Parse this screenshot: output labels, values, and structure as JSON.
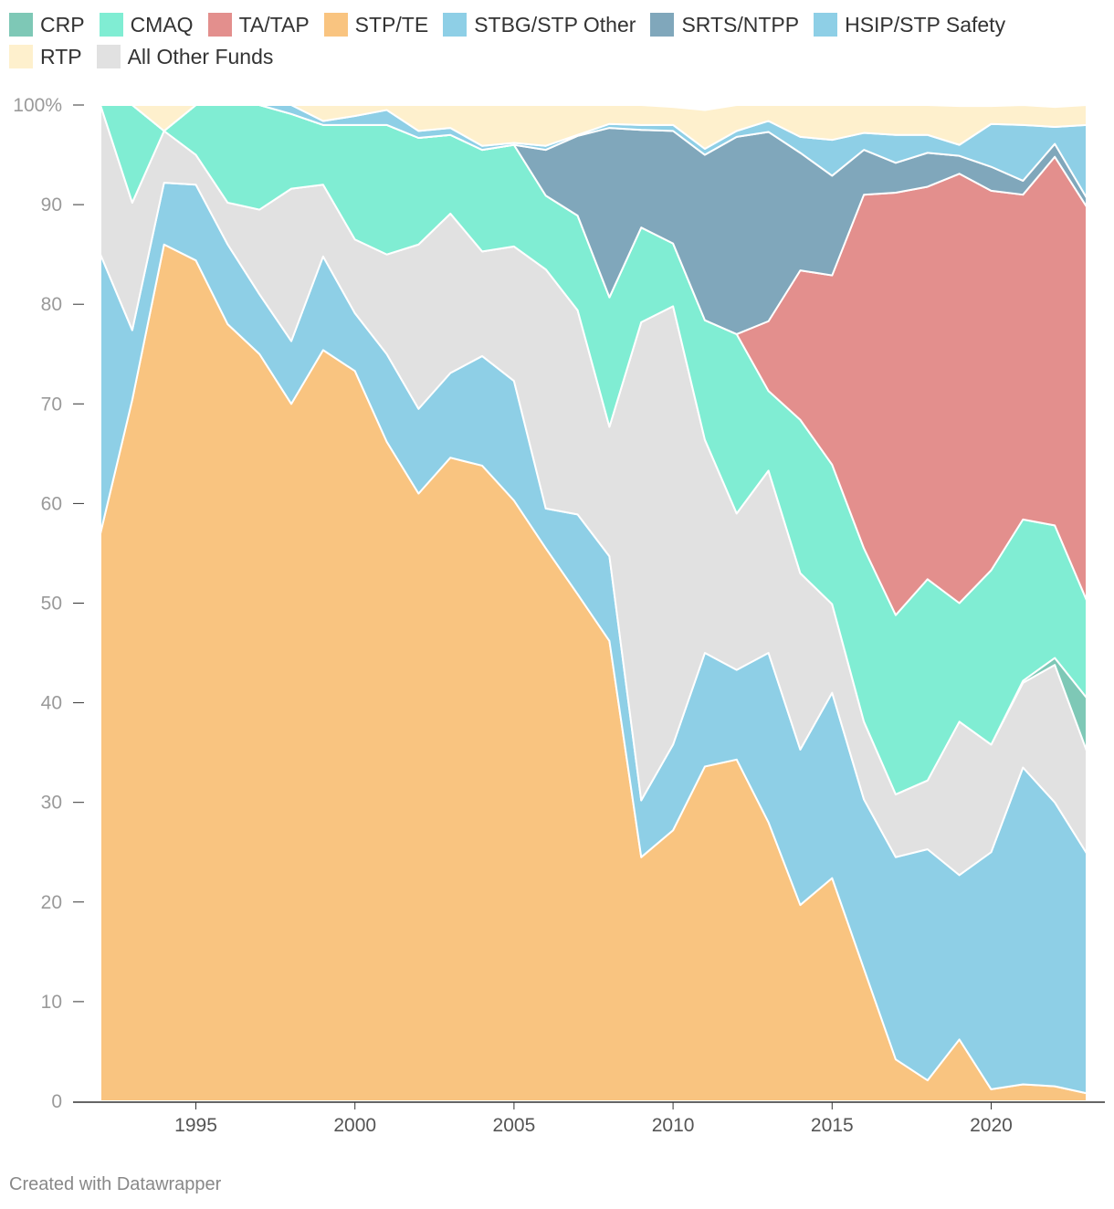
{
  "chart_data": {
    "type": "area",
    "stacked": true,
    "percent": true,
    "x": [
      1992,
      1993,
      1994,
      1995,
      1996,
      1997,
      1998,
      1999,
      2000,
      2001,
      2002,
      2003,
      2004,
      2005,
      2006,
      2007,
      2008,
      2009,
      2010,
      2011,
      2012,
      2013,
      2014,
      2015,
      2016,
      2017,
      2018,
      2019,
      2020,
      2021,
      2022,
      2023
    ],
    "ylim": [
      0,
      100
    ],
    "y_ticks": [
      0,
      10,
      20,
      30,
      40,
      50,
      60,
      70,
      80,
      90,
      100
    ],
    "y_tick_labels": [
      "0",
      "10",
      "20",
      "30",
      "40",
      "50",
      "60",
      "70",
      "80",
      "90",
      "100%"
    ],
    "x_ticks": [
      1995,
      2000,
      2005,
      2010,
      2015,
      2020
    ],
    "x_tick_labels": [
      "1995",
      "2000",
      "2005",
      "2010",
      "2015",
      "2020"
    ],
    "grid": "horizontal",
    "legend_position": "top",
    "series": [
      {
        "name": "STP/TE",
        "color": "#f9c480",
        "values": [
          57,
          70.4,
          86,
          84.4,
          78,
          75,
          70,
          75.4,
          73.3,
          66.2,
          61,
          64.6,
          63.8,
          60.3,
          55.5,
          50.9,
          46.2,
          24.5,
          27.2,
          33.6,
          34.3,
          28,
          19.7,
          22.4,
          13.3,
          4.2,
          2.1,
          6.2,
          1.2,
          1.7,
          1.5,
          0.8
        ]
      },
      {
        "name": "STBG/STP Other",
        "color": "#8ecfe6",
        "values": [
          28,
          7,
          6.2,
          7.6,
          8,
          6,
          6.3,
          9.4,
          5.8,
          8.8,
          8.5,
          8.5,
          11,
          12,
          4,
          8,
          8.5,
          5.7,
          8.6,
          11.4,
          9,
          17,
          15.6,
          18.6,
          17,
          20.3,
          23.2,
          16.5,
          23.8,
          31.8,
          28.5,
          24.1
        ]
      },
      {
        "name": "All Other Funds",
        "color": "#e1e1e1",
        "values": [
          15,
          12.8,
          5.2,
          3,
          4.2,
          8.5,
          15.3,
          7.2,
          7.4,
          10,
          16.5,
          16,
          10.5,
          13.5,
          24,
          20.5,
          13,
          48,
          44,
          21.4,
          15.7,
          18.3,
          17.7,
          8.9,
          7.8,
          6.3,
          6.9,
          15.4,
          10.8,
          8.5,
          13.8,
          10.3
        ]
      },
      {
        "name": "CRP",
        "color": "#7ec8b6",
        "values": [
          0,
          0,
          0,
          0,
          0,
          0,
          0,
          0,
          0,
          0,
          0,
          0,
          0,
          0,
          0,
          0,
          0,
          0,
          0,
          0,
          0,
          0,
          0,
          0,
          0,
          0,
          0,
          0,
          0,
          0.2,
          0.7,
          5.3
        ]
      },
      {
        "name": "CMAQ",
        "color": "#80edd3",
        "values": [
          0,
          9.8,
          0,
          5,
          9.8,
          10.5,
          7.5,
          6,
          11.5,
          13,
          10.7,
          7.9,
          10.2,
          10.2,
          7.4,
          9.5,
          13,
          9.5,
          6.3,
          12,
          18,
          8,
          15.4,
          14,
          17.4,
          18,
          20.2,
          11.9,
          17.5,
          16.2,
          13.3,
          9.8
        ]
      },
      {
        "name": "TA/TAP",
        "color": "#e38f8d",
        "values": [
          0,
          0,
          0,
          0,
          0,
          0,
          0,
          0,
          0,
          0,
          0,
          0,
          0,
          0,
          0,
          0,
          0,
          0,
          0,
          0,
          0,
          7,
          15,
          19,
          35.5,
          42.4,
          39.4,
          43.1,
          38.1,
          32.6,
          37,
          39.5
        ]
      },
      {
        "name": "SRTS/NTPP",
        "color": "#80a7bb",
        "values": [
          0,
          0,
          0,
          0,
          0,
          0,
          0,
          0,
          0,
          0,
          0,
          0,
          0,
          0,
          4.6,
          8,
          17,
          9.8,
          11.3,
          16.6,
          19.8,
          19,
          11.8,
          10,
          4.5,
          3,
          3.4,
          1.8,
          2.4,
          1.4,
          1.3,
          0.9
        ]
      },
      {
        "name": "HSIP/STP Safety",
        "color": "#8ecfe6",
        "values": [
          0,
          0,
          0,
          0,
          0,
          0,
          0.9,
          0.4,
          0.9,
          1.5,
          0.7,
          0.7,
          0.4,
          0.2,
          0.4,
          0.1,
          0.4,
          0.5,
          0.6,
          0.6,
          0.6,
          1.1,
          1.6,
          3.6,
          1.7,
          2.8,
          1.8,
          1.1,
          4.3,
          5.6,
          1.7,
          7.3
        ]
      },
      {
        "name": "RTP",
        "color": "#fef0cd",
        "values": [
          0,
          0,
          2.6,
          0,
          0,
          0,
          0,
          1.6,
          1.1,
          0.5,
          2.6,
          2.3,
          4.1,
          3.8,
          4.1,
          3,
          2.1,
          2,
          1.8,
          3.9,
          2.6,
          1.6,
          3.2,
          3.5,
          2.8,
          3.2,
          3,
          3.9,
          1.8,
          2.1,
          2,
          2
        ]
      }
    ]
  },
  "legend": {
    "items": [
      {
        "label": "CRP",
        "color": "#7ec8b6"
      },
      {
        "label": "CMAQ",
        "color": "#80edd3"
      },
      {
        "label": "TA/TAP",
        "color": "#e38f8d"
      },
      {
        "label": "STP/TE",
        "color": "#f9c480"
      },
      {
        "label": "STBG/STP Other",
        "color": "#8ecfe6"
      },
      {
        "label": "SRTS/NTPP",
        "color": "#80a7bb"
      },
      {
        "label": "HSIP/STP Safety",
        "color": "#8ecfe6"
      },
      {
        "label": "RTP",
        "color": "#fef0cd"
      },
      {
        "label": "All Other Funds",
        "color": "#e1e1e1"
      }
    ]
  },
  "credit": "Created with Datawrapper"
}
